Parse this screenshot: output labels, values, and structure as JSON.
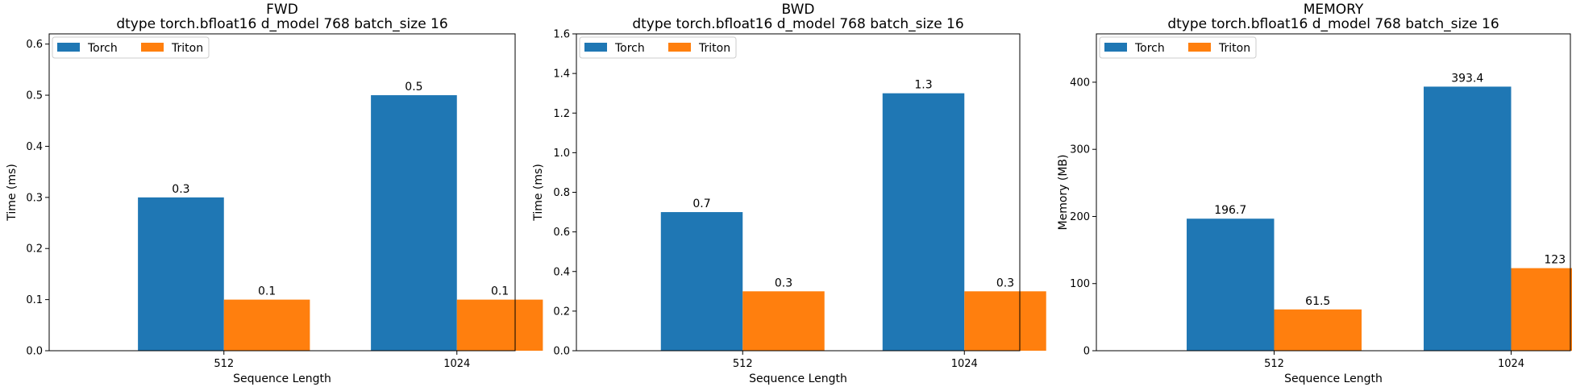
{
  "chart_data": [
    {
      "type": "bar",
      "title": "FWD",
      "subtitle": "dtype torch.bfloat16 d_model 768 batch_size 16",
      "xlabel": "Sequence Length",
      "ylabel": "Time (ms)",
      "categories": [
        "512",
        "1024"
      ],
      "ylim": [
        0,
        0.62
      ],
      "yticks": [
        0.0,
        0.1,
        0.2,
        0.3,
        0.4,
        0.5,
        0.6
      ],
      "ytick_labels": [
        "0.0",
        "0.1",
        "0.2",
        "0.3",
        "0.4",
        "0.5",
        "0.6"
      ],
      "series": [
        {
          "name": "Torch",
          "color": "#1f77b4",
          "values": [
            0.3,
            0.5
          ],
          "labels": [
            "0.3",
            "0.5"
          ]
        },
        {
          "name": "Triton",
          "color": "#ff7f0e",
          "values": [
            0.1,
            0.1
          ],
          "labels": [
            "0.1",
            "0.1"
          ]
        }
      ],
      "legend": "top-left",
      "grid": false
    },
    {
      "type": "bar",
      "title": "BWD",
      "subtitle": "dtype torch.bfloat16 d_model 768 batch_size 16",
      "xlabel": "Sequence Length",
      "ylabel": "Time (ms)",
      "categories": [
        "512",
        "1024"
      ],
      "ylim": [
        0,
        1.6
      ],
      "yticks": [
        0.0,
        0.2,
        0.4,
        0.6,
        0.8,
        1.0,
        1.2,
        1.4,
        1.6
      ],
      "ytick_labels": [
        "0.0",
        "0.2",
        "0.4",
        "0.6",
        "0.8",
        "1.0",
        "1.2",
        "1.4",
        "1.6"
      ],
      "series": [
        {
          "name": "Torch",
          "color": "#1f77b4",
          "values": [
            0.7,
            1.3
          ],
          "labels": [
            "0.7",
            "1.3"
          ]
        },
        {
          "name": "Triton",
          "color": "#ff7f0e",
          "values": [
            0.3,
            0.3
          ],
          "labels": [
            "0.3",
            "0.3"
          ]
        }
      ],
      "legend": "top-left",
      "grid": false
    },
    {
      "type": "bar",
      "title": "MEMORY",
      "subtitle": "dtype torch.bfloat16 d_model 768 batch_size 16",
      "xlabel": "Sequence Length",
      "ylabel": "Memory (MB)",
      "categories": [
        "512",
        "1024"
      ],
      "ylim": [
        0,
        472
      ],
      "yticks": [
        0,
        100,
        200,
        300,
        400
      ],
      "ytick_labels": [
        "0",
        "100",
        "200",
        "300",
        "400"
      ],
      "series": [
        {
          "name": "Torch",
          "color": "#1f77b4",
          "values": [
            196.7,
            393.4
          ],
          "labels": [
            "196.7",
            "393.4"
          ]
        },
        {
          "name": "Triton",
          "color": "#ff7f0e",
          "values": [
            61.5,
            123
          ],
          "labels": [
            "61.5",
            "123"
          ]
        }
      ],
      "legend": "top-left",
      "grid": false
    }
  ]
}
